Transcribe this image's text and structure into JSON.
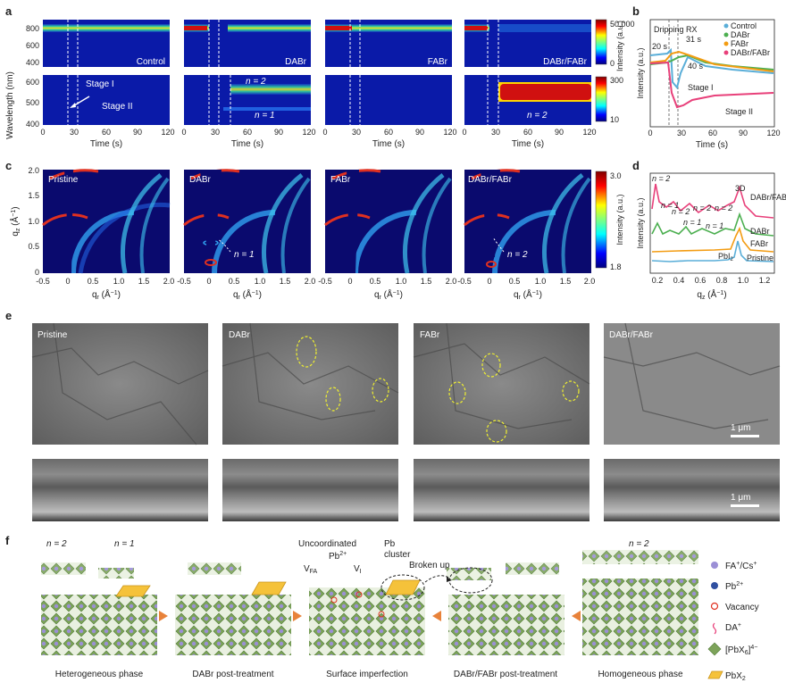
{
  "panel_letters": {
    "a": "a",
    "b": "b",
    "c": "c",
    "d": "d",
    "e": "e",
    "f": "f"
  },
  "panel_a": {
    "ylabel": "Wavelength (nm)",
    "xlabel": "Time (s)",
    "top_yticks": [
      "800",
      "600",
      "400"
    ],
    "bottom_yticks": [
      "600",
      "500",
      "400"
    ],
    "xticks": [
      "0",
      "30",
      "60",
      "90",
      "120"
    ],
    "columns": [
      "Control",
      "DABr",
      "FABr",
      "DABr/FABr"
    ],
    "annotations": {
      "stage1": "Stage I",
      "stage2": "Stage II",
      "n2": "n = 2",
      "n1": "n = 1",
      "n2b": "n = 2"
    },
    "colorbar_top": {
      "max": "50,000",
      "min": "0",
      "label": "Intensity (a.u.)"
    },
    "colorbar_bottom": {
      "max": "300",
      "min": "10"
    }
  },
  "panel_b": {
    "ylabel": "Intensity (a.u.)",
    "xlabel": "Time (s)",
    "xticks": [
      "0",
      "30",
      "60",
      "90",
      "120"
    ],
    "legend": [
      "Control",
      "DABr",
      "FABr",
      "DABr/FABr"
    ],
    "colors": {
      "Control": "#5aaed8",
      "DABr": "#4caf50",
      "FABr": "#f39c12",
      "DABr/FABr": "#e8407a"
    },
    "annotations": {
      "dripping": "Dripping RX",
      "t20": "20 s",
      "t31": "31 s",
      "t40": "40 s",
      "stage1": "Stage I",
      "stage2": "Stage II"
    }
  },
  "panel_c": {
    "ylabel": "q",
    "ylabel_sub": "z",
    "ylabel_unit": "(Å",
    "xlabel": "q",
    "xlabel_sub": "r",
    "xlabel_unit": "(Å",
    "yticks": [
      "2.0",
      "1.5",
      "1.0",
      "0.5",
      "0"
    ],
    "xticks": [
      "-0.5",
      "0",
      "0.5",
      "1.0",
      "1.5",
      "2.0"
    ],
    "columns": [
      "Pristine",
      "DABr",
      "FABr",
      "DABr/FABr"
    ],
    "annotations": {
      "n1": "n = 1",
      "n2": "n = 2"
    },
    "colorbar": {
      "max": "3.0",
      "min": "1.8",
      "label": "Intensity (a.u.)"
    }
  },
  "panel_d": {
    "ylabel": "Intensity (a.u.)",
    "xlabel": "q",
    "xlabel_sub": "z",
    "xlabel_unit": "(Å",
    "xticks": [
      "0.2",
      "0.4",
      "0.6",
      "0.8",
      "1.0",
      "1.2"
    ],
    "traces": [
      "DABr/FABr",
      "DABr",
      "FABr",
      "Pristine"
    ],
    "colors": {
      "DABr/FABr": "#e8407a",
      "DABr": "#4caf50",
      "FABr": "#f39c12",
      "Pristine": "#5aaed8"
    },
    "annotations": {
      "n2": "n = 2",
      "n1a": "n = 1",
      "n2a": "n = 2",
      "n1b": "n = 1",
      "n2b": "n = 2",
      "n1c": "n = 1",
      "n2c": "n = 2",
      "three_d": "3D",
      "pbi": "PbI",
      "pbi_sub": "2"
    }
  },
  "panel_e": {
    "columns": [
      "Pristine",
      "DABr",
      "FABr",
      "DABr/FABr"
    ],
    "scalebar": "1 μm"
  },
  "panel_f": {
    "top_labels": {
      "n2_left": "n = 2",
      "n1_left": "n = 1",
      "uncoordinated": "Uncoordinated",
      "pb2": "Pb",
      "pb2_sup": "2+",
      "pb_cluster_1": "Pb",
      "pb_cluster_2": "cluster",
      "broken_up": "Broken up",
      "vfa": "V",
      "vfa_sub": "FA",
      "vi": "V",
      "vi_sub": "I",
      "n2_right": "n = 2"
    },
    "captions": [
      "Heterogeneous phase",
      "DABr post-treatment",
      "Surface imperfection",
      "DABr/FABr post-treatment",
      "Homogeneous phase"
    ],
    "legend": [
      {
        "name": "FA",
        "sup": "+",
        "rest": "/Cs",
        "sup2": "+"
      },
      {
        "name": "Pb",
        "sup": "2+",
        "rest": "",
        "sup2": ""
      },
      {
        "name": "Vacancy",
        "sup": "",
        "rest": "",
        "sup2": ""
      },
      {
        "name": "DA",
        "sup": "+",
        "rest": "",
        "sup2": ""
      },
      {
        "name": "[PbX",
        "sub": "6",
        "rest": "]",
        "sup2": "4−"
      },
      {
        "name": "PbX",
        "sub": "2",
        "rest": "",
        "sup2": ""
      }
    ]
  }
}
